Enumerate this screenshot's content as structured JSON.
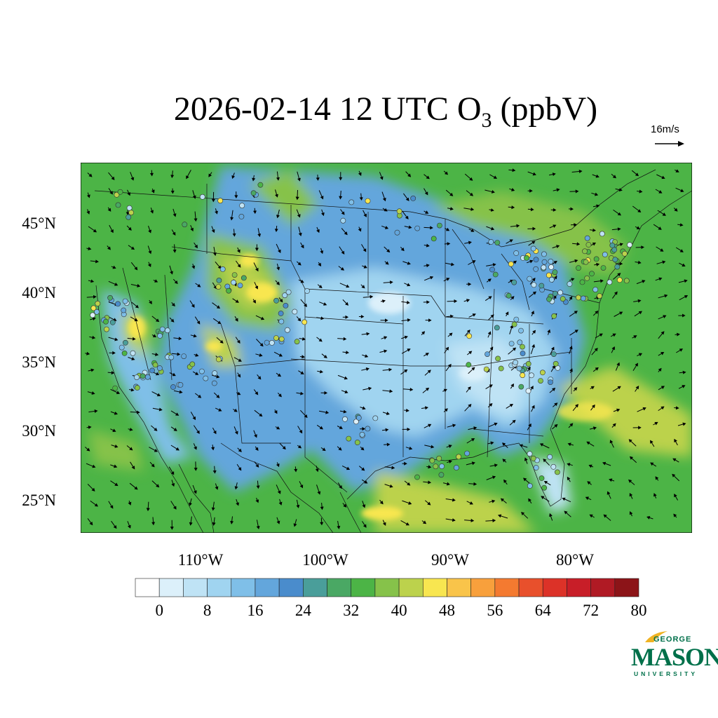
{
  "title": {
    "prefix": "2026-02-14 12 UTC O",
    "subscript": "3",
    "suffix": " (ppbV)"
  },
  "wind_reference": {
    "label": "16m/s",
    "speed_ms": 16
  },
  "map": {
    "lat_labels": [
      "45°N",
      "40°N",
      "35°N",
      "30°N",
      "25°N"
    ],
    "lon_labels": [
      "110°W",
      "100°W",
      "90°W",
      "80°W"
    ],
    "field": "O3 surface concentration",
    "overlays": [
      "state boundaries",
      "coastlines",
      "wind vectors",
      "monitoring station observations"
    ]
  },
  "colorbar": {
    "labels": [
      "0",
      "8",
      "16",
      "24",
      "32",
      "40",
      "48",
      "56",
      "64",
      "72",
      "80"
    ],
    "colors": [
      "#ffffff",
      "#dcf0fa",
      "#bfe3f5",
      "#a0d4f0",
      "#7fbfe8",
      "#63a6dc",
      "#4a8ccc",
      "#4a9e9a",
      "#4aa864",
      "#4cb446",
      "#86c24a",
      "#bcd24c",
      "#f8e650",
      "#f9c44a",
      "#f8a03c",
      "#f47a30",
      "#e8502c",
      "#dc3228",
      "#c81e28",
      "#b01a24",
      "#8c1418"
    ]
  },
  "logo": {
    "line1": "GEORGE",
    "line2": "MASON",
    "line3": "UNIVERSITY",
    "color": "#00704a"
  }
}
